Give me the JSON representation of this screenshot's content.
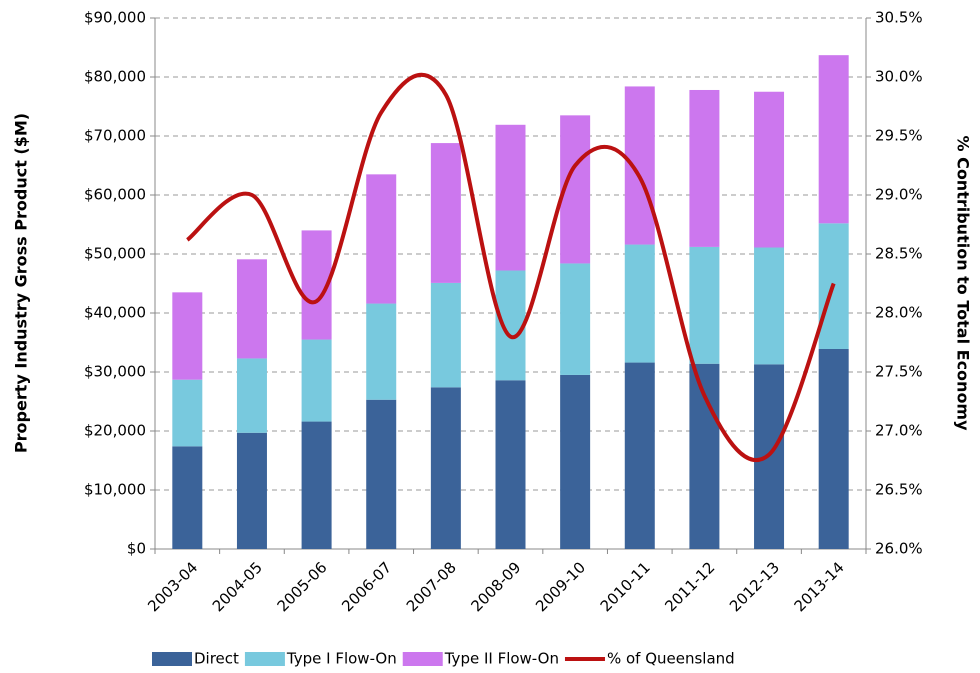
{
  "chart_data": {
    "type": "bar",
    "stacked": true,
    "y_label": "Property Industry Gross Product ($M)",
    "y2_label": "% Contribution to Total Economy",
    "categories": [
      "2003-04",
      "2004-05",
      "2005-06",
      "2006-07",
      "2007-08",
      "2008-09",
      "2009-10",
      "2010-11",
      "2011-12",
      "2012-13",
      "2013-14"
    ],
    "series": [
      {
        "name": "Direct",
        "type": "bar",
        "color": "#3b6399",
        "values": [
          17400,
          19700,
          21600,
          25300,
          27400,
          28600,
          29500,
          31600,
          31400,
          31300,
          33900
        ]
      },
      {
        "name": "Type I Flow-On",
        "type": "bar",
        "color": "#78c9de",
        "values": [
          11300,
          12600,
          13900,
          16300,
          17700,
          18600,
          18900,
          20000,
          19800,
          19800,
          21300
        ]
      },
      {
        "name": "Type II Flow-On",
        "type": "bar",
        "color": "#cc77ee",
        "values": [
          14800,
          16800,
          18500,
          21900,
          23700,
          24700,
          25100,
          26800,
          26600,
          26400,
          28500
        ]
      },
      {
        "name": "% of Queensland",
        "type": "line",
        "axis": "y2",
        "color": "#bb1111",
        "values": [
          28.62,
          29.0,
          28.1,
          29.7,
          29.85,
          27.8,
          29.25,
          29.15,
          27.3,
          26.8,
          28.25
        ]
      }
    ],
    "ylim": [
      0,
      90000
    ],
    "yticks": [
      {
        "value": 0,
        "label": "$0"
      },
      {
        "value": 10000,
        "label": "$10,000"
      },
      {
        "value": 20000,
        "label": "$20,000"
      },
      {
        "value": 30000,
        "label": "$30,000"
      },
      {
        "value": 40000,
        "label": "$40,000"
      },
      {
        "value": 50000,
        "label": "$50,000"
      },
      {
        "value": 60000,
        "label": "$60,000"
      },
      {
        "value": 70000,
        "label": "$70,000"
      },
      {
        "value": 80000,
        "label": "$80,000"
      },
      {
        "value": 90000,
        "label": "$90,000"
      }
    ],
    "y2lim": [
      26.0,
      30.5
    ],
    "y2ticks": [
      {
        "value": 26.0,
        "label": "26.0%"
      },
      {
        "value": 26.5,
        "label": "26.5%"
      },
      {
        "value": 27.0,
        "label": "27.0%"
      },
      {
        "value": 27.5,
        "label": "27.5%"
      },
      {
        "value": 28.0,
        "label": "28.0%"
      },
      {
        "value": 28.5,
        "label": "28.5%"
      },
      {
        "value": 29.0,
        "label": "29.0%"
      },
      {
        "value": 29.5,
        "label": "29.5%"
      },
      {
        "value": 30.0,
        "label": "30.0%"
      },
      {
        "value": 30.5,
        "label": "30.5%"
      }
    ],
    "grid": true,
    "legend": "bottom"
  }
}
